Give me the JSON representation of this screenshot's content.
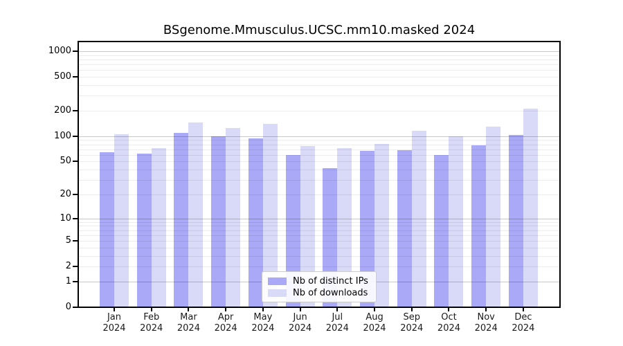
{
  "title": "BSgenome.Mmusculus.UCSC.mm10.masked 2024",
  "colors": {
    "ips_bar": "#a9a9f8",
    "downloads_bar": "#d9d9f8",
    "grid_major": "#c9c9c9",
    "grid_minor": "#ececec",
    "axis": "#000000"
  },
  "y_axis": {
    "tick_values": [
      0,
      1,
      2,
      5,
      10,
      20,
      50,
      100,
      200,
      500,
      1000
    ]
  },
  "x_axis": {
    "months": [
      "Jan",
      "Feb",
      "Mar",
      "Apr",
      "May",
      "Jun",
      "Jul",
      "Aug",
      "Sep",
      "Oct",
      "Nov",
      "Dec"
    ],
    "year_label": "2024"
  },
  "legend": {
    "items": [
      {
        "label": "Nb of distinct IPs",
        "color_key": "ips_bar"
      },
      {
        "label": "Nb of downloads",
        "color_key": "downloads_bar"
      }
    ]
  },
  "chart_data": {
    "type": "bar",
    "title": "BSgenome.Mmusculus.UCSC.mm10.masked 2024",
    "categories": [
      "Jan 2024",
      "Feb 2024",
      "Mar 2024",
      "Apr 2024",
      "May 2024",
      "Jun 2024",
      "Jul 2024",
      "Aug 2024",
      "Sep 2024",
      "Oct 2024",
      "Nov 2024",
      "Dec 2024"
    ],
    "series": [
      {
        "name": "Nb of distinct IPs",
        "color": "#a9a9f8",
        "values": [
          65,
          62,
          110,
          100,
          94,
          60,
          42,
          67,
          69,
          60,
          78,
          103
        ]
      },
      {
        "name": "Nb of downloads",
        "color": "#d9d9f8",
        "values": [
          105,
          73,
          145,
          126,
          141,
          76,
          73,
          81,
          115,
          100,
          130,
          213
        ]
      }
    ],
    "xlabel": "",
    "ylabel": "",
    "y_scale": "log10(1+x)",
    "y_ticks": [
      0,
      1,
      2,
      5,
      10,
      20,
      50,
      100,
      200,
      500,
      1000
    ],
    "ylim": [
      0,
      1100
    ],
    "grid": true,
    "grid_minor_values": [
      2,
      3,
      4,
      5,
      6,
      7,
      8,
      9,
      20,
      30,
      40,
      50,
      60,
      70,
      80,
      90,
      200,
      300,
      400,
      500,
      600,
      700,
      800,
      900
    ],
    "grid_major_values": [
      1,
      10,
      100,
      1000
    ],
    "legend_position": "lower center"
  }
}
